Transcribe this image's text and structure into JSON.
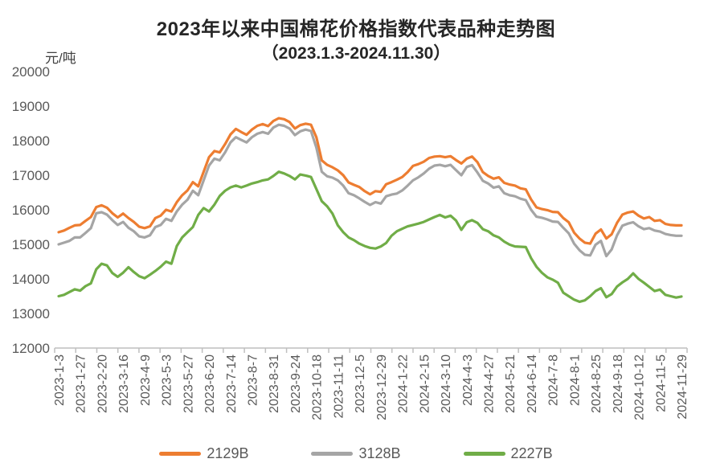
{
  "header": {
    "title": "2023年以来中国棉花价格指数代表品种走势图",
    "subtitle": "（2023.1.3-2024.11.30）",
    "y_unit": "元/吨"
  },
  "colors": {
    "series_2129B": "#ED7D31",
    "series_3128B": "#A5A5A5",
    "series_2227B": "#70AD47",
    "axis_line": "#BFBFBF",
    "axis_text": "#595959",
    "title_text": "#262626"
  },
  "legend": {
    "items": [
      {
        "label": "2129B",
        "color": "#ED7D31"
      },
      {
        "label": "3128B",
        "color": "#A5A5A5"
      },
      {
        "label": "2227B",
        "color": "#70AD47"
      }
    ]
  },
  "chart_data": {
    "type": "line",
    "title": "2023年以来中国棉花价格指数代表品种走势图",
    "subtitle": "（2023.1.3-2024.11.30）",
    "ylabel": "元/吨",
    "ylim": [
      12000,
      20000
    ],
    "yticks": [
      12000,
      13000,
      14000,
      15000,
      16000,
      17000,
      18000,
      19000,
      20000
    ],
    "grid": false,
    "legend_position": "bottom",
    "x_tick_labels": [
      "2023-1-3",
      "2023-1-27",
      "2023-2-20",
      "2023-3-16",
      "2023-4-9",
      "2023-5-3",
      "2023-5-27",
      "2023-6-20",
      "2023-7-14",
      "2023-8-7",
      "2023-8-31",
      "2023-9-24",
      "2023-10-18",
      "2023-11-11",
      "2023-12-5",
      "2023-12-29",
      "2024-1-22",
      "2024-2-15",
      "2024-3-10",
      "2024-4-3",
      "2024-4-27",
      "2024-5-21",
      "2024-6-14",
      "2024-7-8",
      "2024-8-1",
      "2024-8-25",
      "2024-9-18",
      "2024-10-12",
      "2024-11-5",
      "2024-11-29"
    ],
    "tick_interval_days": 24,
    "x_day_span": 696,
    "sample_step_days": 6,
    "series": [
      {
        "name": "2129B",
        "color": "#ED7D31",
        "values": [
          15350,
          15400,
          15480,
          15550,
          15560,
          15680,
          15790,
          16080,
          16130,
          16060,
          15900,
          15780,
          15890,
          15760,
          15650,
          15510,
          15470,
          15520,
          15760,
          15830,
          16000,
          15950,
          16220,
          16420,
          16560,
          16800,
          16680,
          17100,
          17520,
          17700,
          17660,
          17900,
          18180,
          18340,
          18250,
          18170,
          18320,
          18430,
          18480,
          18420,
          18570,
          18650,
          18620,
          18540,
          18350,
          18450,
          18490,
          18460,
          18100,
          17430,
          17300,
          17230,
          17140,
          17000,
          16790,
          16720,
          16660,
          16540,
          16450,
          16540,
          16520,
          16740,
          16800,
          16870,
          16950,
          17090,
          17270,
          17320,
          17390,
          17500,
          17540,
          17550,
          17520,
          17550,
          17440,
          17340,
          17480,
          17540,
          17380,
          17090,
          16980,
          16900,
          16940,
          16780,
          16730,
          16700,
          16620,
          16590,
          16300,
          16070,
          16020,
          15990,
          15940,
          15930,
          15760,
          15640,
          15340,
          15170,
          15050,
          15020,
          15310,
          15430,
          15170,
          15290,
          15620,
          15860,
          15920,
          15950,
          15830,
          15750,
          15790,
          15680,
          15700,
          15590,
          15560,
          15550,
          15550
        ]
      },
      {
        "name": "3128B",
        "color": "#A5A5A5",
        "values": [
          15000,
          15050,
          15100,
          15200,
          15200,
          15330,
          15470,
          15900,
          15930,
          15860,
          15700,
          15560,
          15650,
          15480,
          15380,
          15230,
          15200,
          15260,
          15500,
          15560,
          15740,
          15680,
          15950,
          16150,
          16290,
          16550,
          16420,
          16850,
          17280,
          17480,
          17430,
          17660,
          17950,
          18100,
          18020,
          17950,
          18100,
          18200,
          18250,
          18200,
          18380,
          18460,
          18430,
          18350,
          18160,
          18270,
          18320,
          18280,
          17800,
          17100,
          16970,
          16930,
          16850,
          16700,
          16480,
          16420,
          16330,
          16230,
          16140,
          16220,
          16180,
          16390,
          16440,
          16470,
          16560,
          16700,
          16850,
          16940,
          17050,
          17190,
          17280,
          17300,
          17260,
          17300,
          17150,
          17000,
          17240,
          17290,
          17080,
          16840,
          16760,
          16640,
          16680,
          16480,
          16420,
          16390,
          16320,
          16280,
          16000,
          15800,
          15770,
          15720,
          15660,
          15650,
          15480,
          15320,
          15020,
          14830,
          14700,
          14680,
          14990,
          15100,
          14660,
          14850,
          15260,
          15540,
          15600,
          15640,
          15520,
          15440,
          15470,
          15400,
          15370,
          15300,
          15270,
          15250,
          15250
        ]
      },
      {
        "name": "2227B",
        "color": "#70AD47",
        "values": [
          13500,
          13540,
          13620,
          13700,
          13660,
          13790,
          13870,
          14280,
          14440,
          14390,
          14170,
          14060,
          14180,
          14340,
          14200,
          14080,
          14020,
          14120,
          14230,
          14350,
          14500,
          14440,
          14950,
          15200,
          15350,
          15500,
          15850,
          16050,
          15950,
          16150,
          16400,
          16550,
          16650,
          16700,
          16650,
          16700,
          16760,
          16800,
          16850,
          16880,
          16980,
          17100,
          17050,
          16980,
          16880,
          17020,
          16990,
          16950,
          16600,
          16250,
          16100,
          15890,
          15550,
          15350,
          15200,
          15120,
          15020,
          14950,
          14900,
          14880,
          14940,
          15040,
          15250,
          15380,
          15450,
          15520,
          15560,
          15600,
          15650,
          15720,
          15790,
          15850,
          15780,
          15830,
          15690,
          15420,
          15640,
          15700,
          15620,
          15440,
          15380,
          15260,
          15200,
          15080,
          14990,
          14940,
          14930,
          14920,
          14600,
          14350,
          14180,
          14050,
          13980,
          13890,
          13600,
          13500,
          13400,
          13340,
          13380,
          13500,
          13650,
          13730,
          13470,
          13560,
          13780,
          13900,
          14000,
          14160,
          14000,
          13890,
          13770,
          13650,
          13690,
          13540,
          13500,
          13460,
          13490
        ]
      }
    ]
  }
}
